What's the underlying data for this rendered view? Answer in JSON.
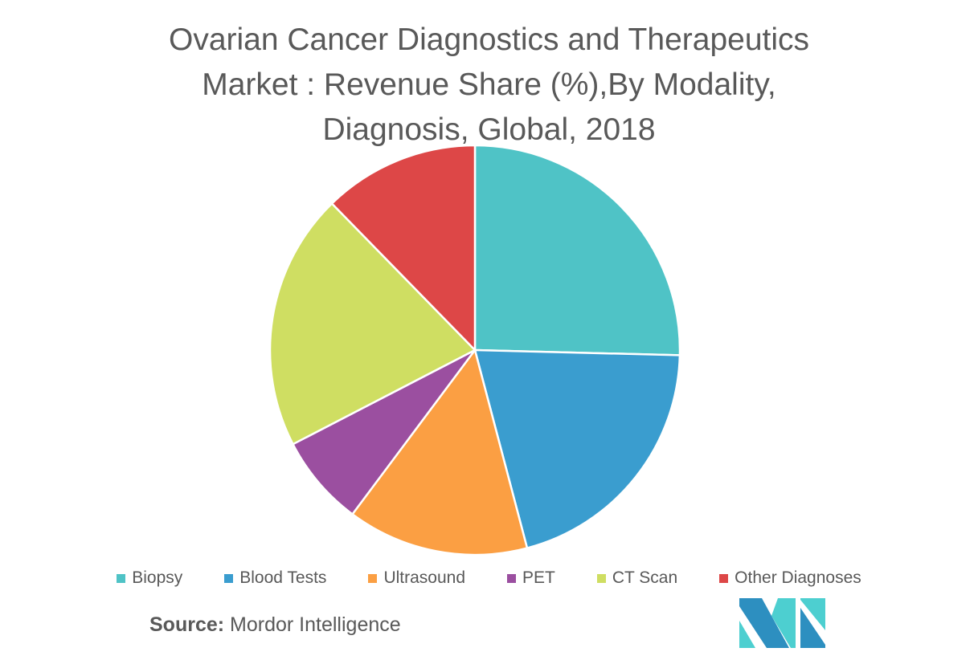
{
  "chart_data": {
    "type": "pie",
    "title_lines": [
      "Ovarian Cancer Diagnostics and Therapeutics",
      "Market : Revenue Share (%),By Modality,",
      "Diagnosis, Global, 2018"
    ],
    "categories": [
      "Biopsy",
      "Blood Tests",
      "Ultrasound",
      "PET",
      "CT Scan",
      "Other Diagnoses"
    ],
    "values": [
      25.4,
      20.5,
      14.3,
      7.2,
      20.3,
      12.3
    ],
    "colors": [
      "#4fc3c6",
      "#3a9dcf",
      "#fb9f43",
      "#9b4fa0",
      "#cfde62",
      "#dd4747"
    ],
    "unit": "%",
    "legend_position": "bottom"
  },
  "source": {
    "label": "Source:",
    "text": " Mordor Intelligence"
  },
  "logo": {
    "text": "Mordor Intelligence",
    "colors": [
      "#2d8fc0",
      "#4dcfd0"
    ]
  }
}
